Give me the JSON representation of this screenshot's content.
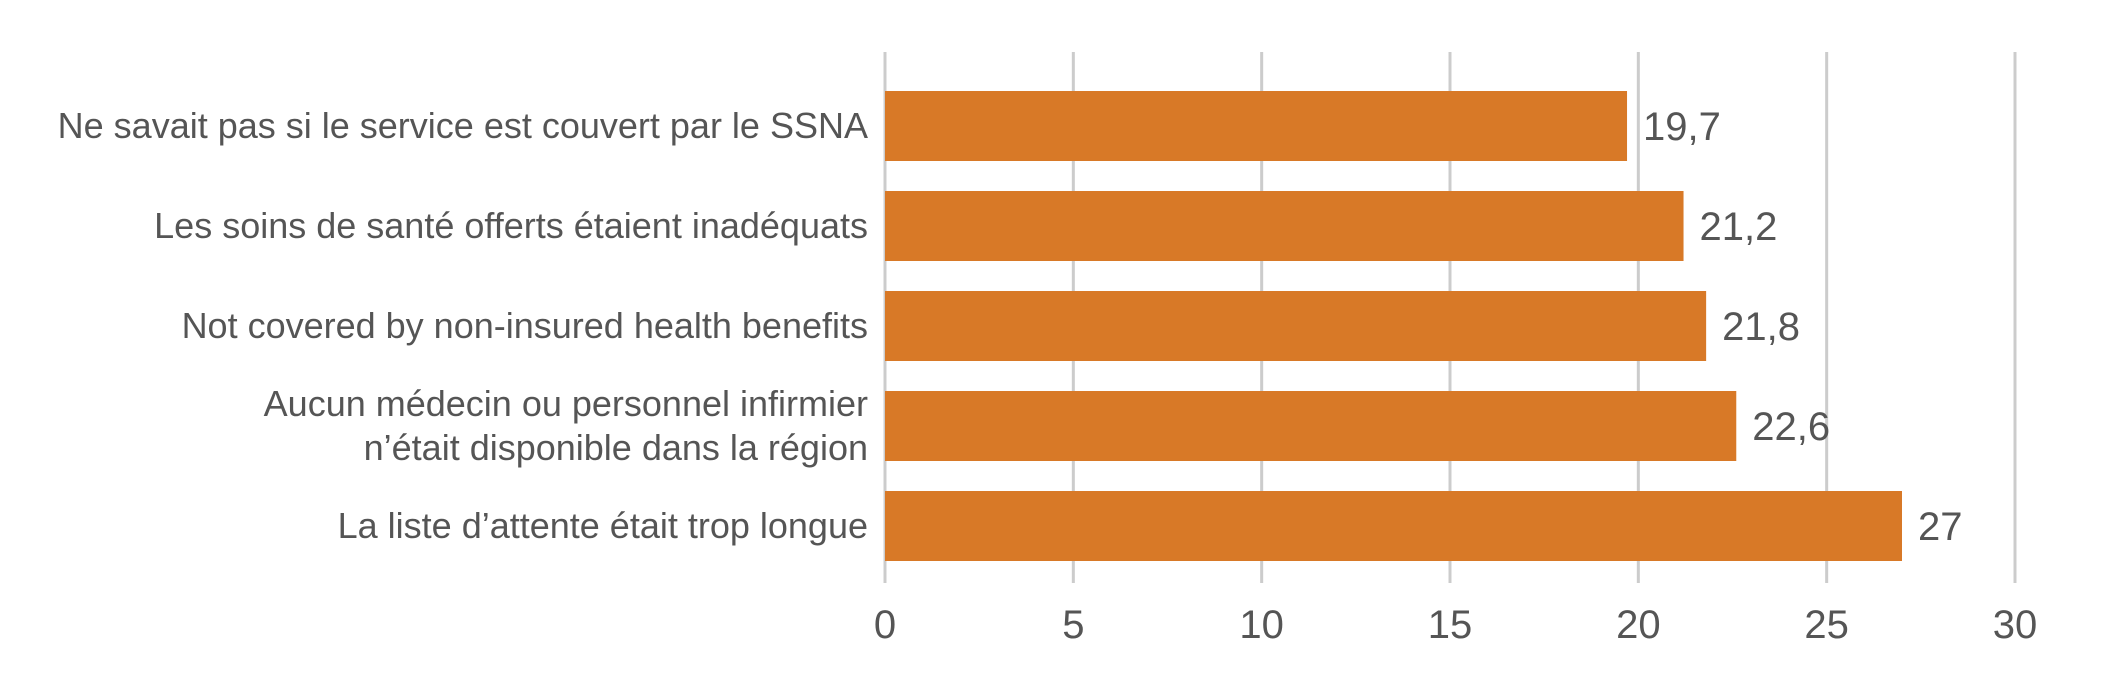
{
  "chart_data": {
    "type": "bar",
    "orientation": "horizontal",
    "title": "",
    "xlabel": "",
    "ylabel": "",
    "xlim": [
      0,
      30
    ],
    "x_ticks": [
      0,
      5,
      10,
      15,
      20,
      25,
      30
    ],
    "x_tick_labels": [
      "0",
      "5",
      "10",
      "15",
      "20",
      "25",
      "30"
    ],
    "grid": "vertical",
    "legend": "none",
    "categories": [
      [
        "Ne savait pas si le service est couvert par le SSNA"
      ],
      [
        "Les soins de santé offerts étaient inadéquats"
      ],
      [
        "Not covered by non-insured health benefits"
      ],
      [
        "Aucun médecin ou personnel infirmier",
        "n’était disponible dans la région"
      ],
      [
        "La liste d’attente était trop longue"
      ]
    ],
    "values": [
      19.7,
      21.2,
      21.8,
      22.6,
      27
    ],
    "value_labels": [
      "19,7",
      "21,2",
      "21,8",
      "22,6",
      "27"
    ],
    "colors": {
      "bar": "#D87927",
      "grid": "#CCCCCC",
      "text": "#555555"
    }
  }
}
